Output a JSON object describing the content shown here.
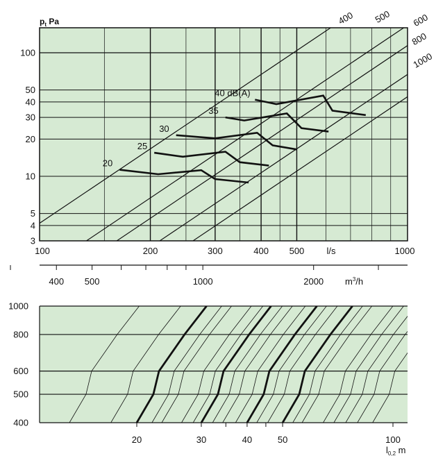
{
  "colors": {
    "plot_bg": "#d6ead3",
    "line": "#111111"
  },
  "chart_data": [
    {
      "type": "line",
      "ylabel_main": "p",
      "ylabel_sub": "t",
      "ylabel_unit": " Pa",
      "x_unit_label": "l/s",
      "x2_unit_base": "m",
      "x2_unit_sup": "3",
      "x2_unit_tail": "/h",
      "xlim": [
        100,
        1000
      ],
      "ylim": [
        3,
        180
      ],
      "x_scale": "log",
      "y_scale": "log",
      "grid": true,
      "x_ticks": [
        100,
        200,
        300,
        400,
        500,
        1000
      ],
      "x_tick_labels": [
        "100",
        "200",
        "300",
        "400",
        "500",
        "1000"
      ],
      "x_grid": [
        100,
        150,
        200,
        250,
        300,
        350,
        400,
        450,
        500,
        600,
        700,
        800,
        900,
        1000
      ],
      "x2_ticks": [
        400,
        500,
        1000,
        2000
      ],
      "x2_tick_labels": [
        "400",
        "500",
        "1000",
        "2000"
      ],
      "x2_minor": [
        300,
        600,
        700,
        800,
        900,
        3000
      ],
      "y_ticks": [
        3,
        4,
        5,
        10,
        20,
        30,
        40,
        50,
        100
      ],
      "y_tick_labels": [
        "3",
        "4",
        "5",
        "10",
        "20",
        "30",
        "40",
        "50",
        "100"
      ],
      "diagonals": [
        {
          "name": "400",
          "x1": 100,
          "y1": 4.17
        },
        {
          "name": "500",
          "x1": 134,
          "y1": 3
        },
        {
          "name": "600",
          "x1": 162,
          "y1": 3
        },
        {
          "name": "800",
          "x1": 212,
          "y1": 3
        },
        {
          "name": "1000",
          "x1": 261,
          "y1": 3
        }
      ],
      "series": [
        {
          "name": "20",
          "points": [
            [
              165,
              11.3
            ],
            [
              210,
              10.4
            ],
            [
              275,
              11.2
            ],
            [
              300,
              9.5
            ],
            [
              370,
              8.9
            ]
          ]
        },
        {
          "name": "25",
          "points": [
            [
              205,
              15.5
            ],
            [
              245,
              14.4
            ],
            [
              320,
              15.8
            ],
            [
              350,
              13.0
            ],
            [
              420,
              12.2
            ]
          ]
        },
        {
          "name": "30",
          "points": [
            [
              235,
              21.5
            ],
            [
              300,
              20.3
            ],
            [
              390,
              22.5
            ],
            [
              430,
              17.8
            ],
            [
              500,
              16.5
            ]
          ]
        },
        {
          "name": "35",
          "points": [
            [
              320,
              30.0
            ],
            [
              360,
              28.3
            ],
            [
              470,
              32.3
            ],
            [
              515,
              24.5
            ],
            [
              610,
              23.0
            ]
          ]
        },
        {
          "name": "40 dB(A)",
          "points": [
            [
              385,
              41.7
            ],
            [
              440,
              38.4
            ],
            [
              590,
              45.0
            ],
            [
              625,
              34.0
            ],
            [
              770,
              31.3
            ]
          ]
        }
      ]
    },
    {
      "type": "line",
      "xlabel_main": "l",
      "xlabel_sub": "0,2",
      "xlabel_unit": " m",
      "xlim": [
        10,
        120
      ],
      "ylim": [
        400,
        1000
      ],
      "x_scale": "log",
      "y_scale": "log",
      "x_ticks": [
        20,
        30,
        40,
        50,
        100
      ],
      "x_tick_labels": [
        "20",
        "30",
        "40",
        "50",
        "100"
      ],
      "x_minor": [
        35,
        45
      ],
      "y_ticks": [
        400,
        500,
        600,
        800,
        1000
      ],
      "y_tick_labels": [
        "400",
        "500",
        "600",
        "800",
        "1000"
      ],
      "line_shape": [
        1.0,
        1.11,
        1.15,
        1.35,
        1.55
      ],
      "thin_lines": [
        13.1,
        17.0,
        22.0,
        23.4,
        26.5,
        28.5,
        32.2,
        34.3,
        37.2,
        42.5,
        45.5,
        53.3,
        56.5,
        64.5,
        69.0,
        74.3,
        80.0,
        88.0
      ],
      "thick_lines": [
        20.0,
        30.0,
        40.0,
        50.0
      ]
    }
  ]
}
